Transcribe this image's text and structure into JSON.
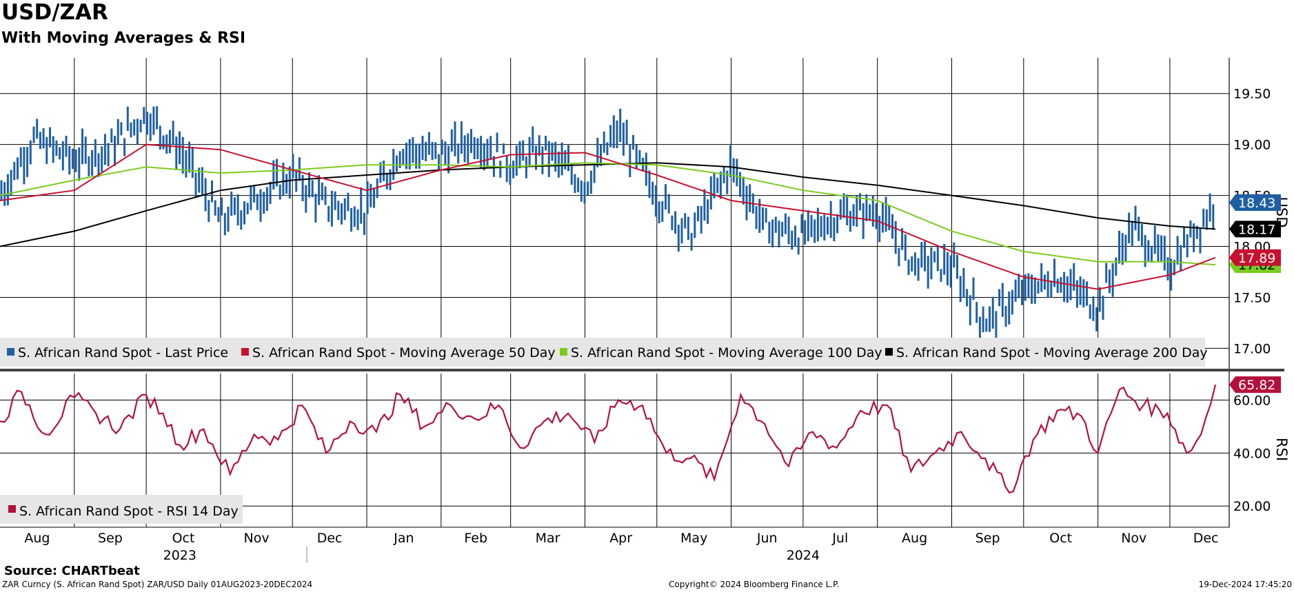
{
  "title": "USD/ZAR",
  "subtitle": "With Moving Averages & RSI",
  "source": "Source: CHARTbeat",
  "footer": {
    "left": "ZAR Curncy (S. African Rand Spot) ZAR/USD  Daily 01AUG2023-20DEC2024",
    "middle": "Copyright© 2024 Bloomberg Finance L.P.",
    "right": "19-Dec-2024 17:45:20"
  },
  "colors": {
    "price": "#1f5fa3",
    "ma50": "#c8102e",
    "ma100": "#7acc1c",
    "ma200": "#000000",
    "rsi": "#b5103a",
    "grid": "#000000",
    "legend_bg": "#e6e6e6"
  },
  "chart_data": [
    {
      "type": "ohlc-bar",
      "x_range": [
        "2023-08-01",
        "2024-12-20"
      ],
      "y_axis_label": "USD",
      "ylim": [
        16.82,
        19.85
      ],
      "y_ticks": [
        "19.50",
        "19.00",
        "18.50",
        "18.00",
        "17.50",
        "17.00"
      ],
      "x_month_ticks": [
        "Aug",
        "Sep",
        "Oct",
        "Nov",
        "Dec",
        "Jan",
        "Feb",
        "Mar",
        "Apr",
        "May",
        "Jun",
        "Jul",
        "Aug",
        "Sep",
        "Oct",
        "Nov",
        "Dec"
      ],
      "x_year_labels": [
        "2023",
        "2024"
      ],
      "legend": [
        "S. African Rand Spot - Last Price",
        "S. African Rand Spot - Moving Average 50 Day",
        "S. African Rand Spot - Moving Average 100 Day",
        "S. African Rand Spot - Moving Average 200 Day"
      ],
      "last_values": {
        "price": "18.43",
        "ma200": "18.17",
        "ma50": "17.89",
        "ma100": "17.82"
      },
      "series": [
        {
          "name": "S. African Rand Spot - Last Price",
          "monthly_close": [
            [
              "2023-08-01",
              18.5
            ],
            [
              "2023-08-15",
              19.05
            ],
            [
              "2023-09-01",
              18.85
            ],
            [
              "2023-09-15",
              18.95
            ],
            [
              "2023-10-01",
              19.3
            ],
            [
              "2023-10-15",
              18.95
            ],
            [
              "2023-11-01",
              18.25
            ],
            [
              "2023-11-15",
              18.45
            ],
            [
              "2023-12-01",
              18.7
            ],
            [
              "2023-12-15",
              18.4
            ],
            [
              "2024-01-01",
              18.35
            ],
            [
              "2024-01-15",
              18.95
            ],
            [
              "2024-02-01",
              18.9
            ],
            [
              "2024-02-15",
              19.05
            ],
            [
              "2024-03-01",
              18.8
            ],
            [
              "2024-03-15",
              18.95
            ],
            [
              "2024-04-01",
              18.6
            ],
            [
              "2024-04-15",
              19.15
            ],
            [
              "2024-05-01",
              18.5
            ],
            [
              "2024-05-15",
              18.1
            ],
            [
              "2024-06-01",
              18.8
            ],
            [
              "2024-06-15",
              18.2
            ],
            [
              "2024-07-01",
              18.1
            ],
            [
              "2024-07-15",
              18.3
            ],
            [
              "2024-08-01",
              18.35
            ],
            [
              "2024-08-15",
              17.85
            ],
            [
              "2024-09-01",
              17.8
            ],
            [
              "2024-09-15",
              17.25
            ],
            [
              "2024-10-01",
              17.55
            ],
            [
              "2024-10-15",
              17.7
            ],
            [
              "2024-11-01",
              17.4
            ],
            [
              "2024-11-15",
              18.2
            ],
            [
              "2024-12-01",
              17.8
            ],
            [
              "2024-12-20",
              18.43
            ]
          ]
        },
        {
          "name": "S. African Rand Spot - Moving Average 50 Day",
          "values": [
            [
              "2023-08-01",
              18.45
            ],
            [
              "2023-09-01",
              18.55
            ],
            [
              "2023-10-01",
              19.0
            ],
            [
              "2023-11-01",
              18.95
            ],
            [
              "2023-12-01",
              18.75
            ],
            [
              "2024-01-01",
              18.55
            ],
            [
              "2024-02-01",
              18.75
            ],
            [
              "2024-03-01",
              18.9
            ],
            [
              "2024-04-01",
              18.92
            ],
            [
              "2024-05-01",
              18.7
            ],
            [
              "2024-06-01",
              18.45
            ],
            [
              "2024-07-01",
              18.35
            ],
            [
              "2024-08-01",
              18.25
            ],
            [
              "2024-09-01",
              17.95
            ],
            [
              "2024-10-01",
              17.7
            ],
            [
              "2024-11-01",
              17.58
            ],
            [
              "2024-12-01",
              17.72
            ],
            [
              "2024-12-20",
              17.89
            ]
          ]
        },
        {
          "name": "S. African Rand Spot - Moving Average 100 Day",
          "values": [
            [
              "2023-08-01",
              18.5
            ],
            [
              "2023-09-01",
              18.65
            ],
            [
              "2023-10-01",
              18.78
            ],
            [
              "2023-11-01",
              18.72
            ],
            [
              "2023-12-01",
              18.75
            ],
            [
              "2024-01-01",
              18.8
            ],
            [
              "2024-02-01",
              18.8
            ],
            [
              "2024-03-01",
              18.78
            ],
            [
              "2024-04-01",
              18.82
            ],
            [
              "2024-05-01",
              18.8
            ],
            [
              "2024-06-01",
              18.7
            ],
            [
              "2024-07-01",
              18.55
            ],
            [
              "2024-08-01",
              18.45
            ],
            [
              "2024-09-01",
              18.15
            ],
            [
              "2024-10-01",
              17.95
            ],
            [
              "2024-11-01",
              17.85
            ],
            [
              "2024-12-01",
              17.85
            ],
            [
              "2024-12-20",
              17.82
            ]
          ]
        },
        {
          "name": "S. African Rand Spot - Moving Average 200 Day",
          "values": [
            [
              "2023-08-01",
              18.0
            ],
            [
              "2023-09-01",
              18.15
            ],
            [
              "2023-10-01",
              18.35
            ],
            [
              "2023-11-01",
              18.55
            ],
            [
              "2023-12-01",
              18.65
            ],
            [
              "2024-01-01",
              18.7
            ],
            [
              "2024-02-01",
              18.75
            ],
            [
              "2024-03-01",
              18.78
            ],
            [
              "2024-04-01",
              18.8
            ],
            [
              "2024-05-01",
              18.82
            ],
            [
              "2024-06-01",
              18.78
            ],
            [
              "2024-07-01",
              18.68
            ],
            [
              "2024-08-01",
              18.6
            ],
            [
              "2024-09-01",
              18.5
            ],
            [
              "2024-10-01",
              18.4
            ],
            [
              "2024-11-01",
              18.28
            ],
            [
              "2024-12-01",
              18.2
            ],
            [
              "2024-12-20",
              18.17
            ]
          ]
        }
      ]
    },
    {
      "type": "line",
      "y_axis_label": "RSI",
      "ylim": [
        12,
        70
      ],
      "y_ticks": [
        "60.00",
        "40.00",
        "20.00"
      ],
      "legend": [
        "S. African Rand Spot - RSI 14 Day"
      ],
      "last_value": "65.82",
      "series": [
        {
          "name": "S. African Rand Spot - RSI 14 Day",
          "values": [
            [
              "2023-08-01",
              52
            ],
            [
              "2023-08-10",
              63
            ],
            [
              "2023-08-20",
              47
            ],
            [
              "2023-09-01",
              61
            ],
            [
              "2023-09-10",
              55
            ],
            [
              "2023-09-20",
              49
            ],
            [
              "2023-10-01",
              62
            ],
            [
              "2023-10-08",
              55
            ],
            [
              "2023-10-15",
              43
            ],
            [
              "2023-10-25",
              49
            ],
            [
              "2023-11-05",
              32
            ],
            [
              "2023-11-15",
              47
            ],
            [
              "2023-11-25",
              45
            ],
            [
              "2023-12-05",
              58
            ],
            [
              "2023-12-15",
              40
            ],
            [
              "2023-12-25",
              52
            ],
            [
              "2024-01-05",
              48
            ],
            [
              "2024-01-15",
              62
            ],
            [
              "2024-01-25",
              50
            ],
            [
              "2024-02-05",
              58
            ],
            [
              "2024-02-15",
              53
            ],
            [
              "2024-02-25",
              58
            ],
            [
              "2024-03-05",
              42
            ],
            [
              "2024-03-15",
              52
            ],
            [
              "2024-03-25",
              55
            ],
            [
              "2024-04-05",
              44
            ],
            [
              "2024-04-15",
              60
            ],
            [
              "2024-04-25",
              58
            ],
            [
              "2024-05-05",
              40
            ],
            [
              "2024-05-15",
              38
            ],
            [
              "2024-05-25",
              30
            ],
            [
              "2024-06-05",
              62
            ],
            [
              "2024-06-15",
              51
            ],
            [
              "2024-06-25",
              35
            ],
            [
              "2024-07-05",
              48
            ],
            [
              "2024-07-15",
              42
            ],
            [
              "2024-07-25",
              56
            ],
            [
              "2024-08-05",
              58
            ],
            [
              "2024-08-15",
              33
            ],
            [
              "2024-08-25",
              40
            ],
            [
              "2024-09-05",
              48
            ],
            [
              "2024-09-15",
              38
            ],
            [
              "2024-09-25",
              25
            ],
            [
              "2024-10-05",
              45
            ],
            [
              "2024-10-15",
              56
            ],
            [
              "2024-10-25",
              54
            ],
            [
              "2024-11-01",
              40
            ],
            [
              "2024-11-10",
              64
            ],
            [
              "2024-11-20",
              58
            ],
            [
              "2024-11-30",
              55
            ],
            [
              "2024-12-08",
              40
            ],
            [
              "2024-12-14",
              47
            ],
            [
              "2024-12-20",
              65.82
            ]
          ]
        }
      ]
    }
  ]
}
